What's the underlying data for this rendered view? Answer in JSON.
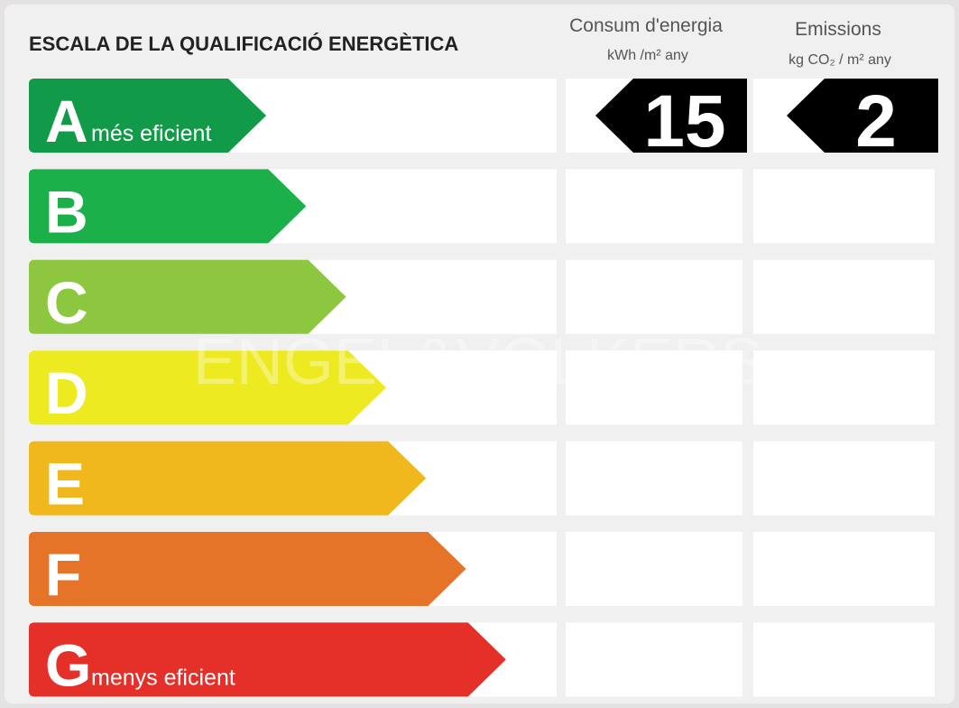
{
  "header": {
    "title": "ESCALA DE LA QUALIFICACIÓ ENERGÈTICA",
    "consumption": {
      "title": "Consum d'energia",
      "unit": "kWh /m² any"
    },
    "emissions": {
      "title": "Emissions",
      "unit": "kg CO₂ / m² any"
    }
  },
  "rows": [
    {
      "letter": "A",
      "label": "més eficient",
      "color": "#119a48",
      "consumption": 15,
      "emissions": 2
    },
    {
      "letter": "B",
      "color": "#1bb04a"
    },
    {
      "letter": "C",
      "color": "#8dc63f"
    },
    {
      "letter": "D",
      "color": "#eeea22"
    },
    {
      "letter": "E",
      "color": "#f0b81c"
    },
    {
      "letter": "F",
      "color": "#e57428"
    },
    {
      "letter": "G",
      "label": "menys eficient",
      "color": "#e5302a"
    }
  ],
  "watermark": "ENGEL&VÖLKERS"
}
